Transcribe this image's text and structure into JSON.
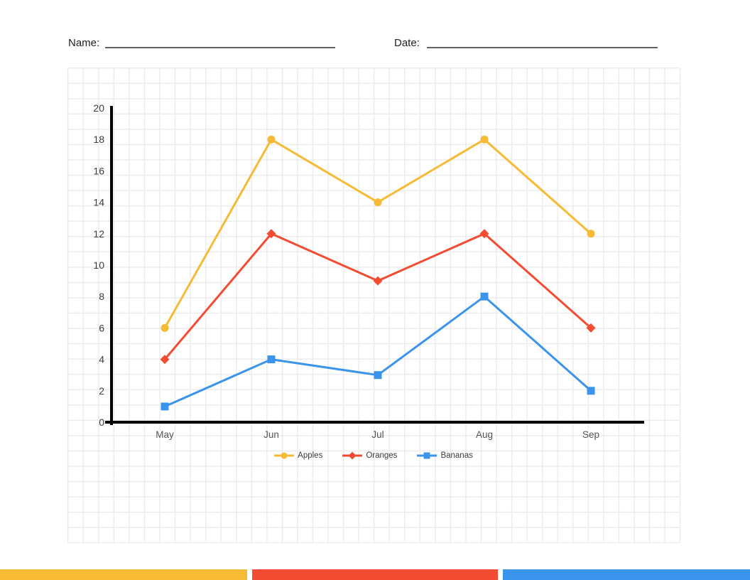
{
  "header": {
    "name_label": "Name:",
    "date_label": "Date:"
  },
  "chart_data": {
    "type": "line",
    "categories": [
      "May",
      "Jun",
      "Jul",
      "Aug",
      "Sep"
    ],
    "series": [
      {
        "name": "Apples",
        "color": "#F7BA34",
        "marker": "circle",
        "values": [
          6,
          18,
          14,
          18,
          12
        ]
      },
      {
        "name": "Oranges",
        "color": "#F44C32",
        "marker": "diamond",
        "values": [
          4,
          12,
          9,
          12,
          6
        ]
      },
      {
        "name": "Bananas",
        "color": "#3B94EC",
        "marker": "square",
        "values": [
          1,
          4,
          3,
          8,
          2
        ]
      }
    ],
    "title": "",
    "xlabel": "",
    "ylabel": "",
    "ylim": [
      0,
      20
    ],
    "ytick_step": 2,
    "axis_color": "#000000",
    "background": "graph-paper",
    "grid_line_color": "#ececec",
    "legend_position": "bottom"
  },
  "footer_bars": [
    {
      "name": "yellow-bar",
      "color": "#F7BA34"
    },
    {
      "name": "red-bar",
      "color": "#F44C32"
    },
    {
      "name": "blue-bar",
      "color": "#3B94EC"
    }
  ]
}
